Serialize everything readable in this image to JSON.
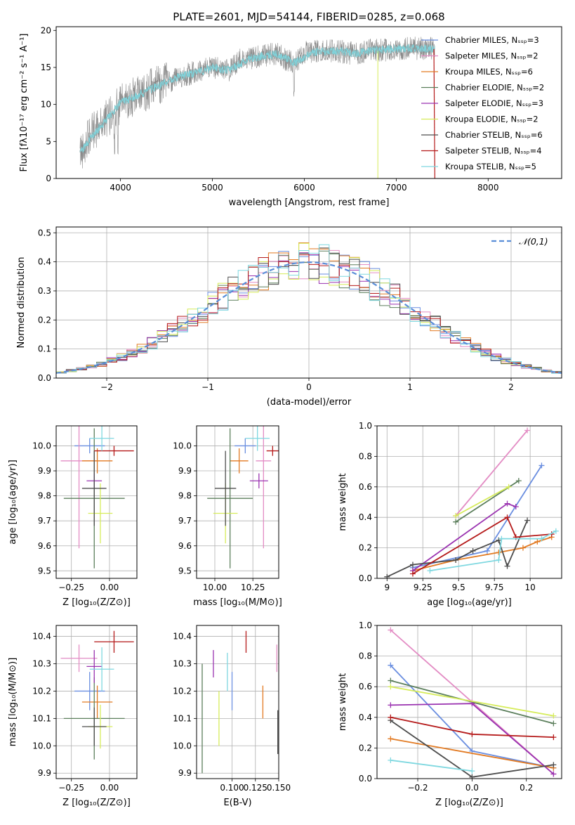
{
  "figure_title": "PLATE=2601, MJD=54144, FIBERID=0285, z=0.068",
  "colors": {
    "Chabrier MILES": "#6a8ee0",
    "Salpeter MILES": "#e38cc4",
    "Kroupa MILES": "#e27a22",
    "Chabrier ELODIE": "#5c7f5c",
    "Salpeter ELODIE": "#9a32b0",
    "Kroupa ELODIE": "#d6ec5a",
    "Chabrier STELIB": "#4d4d4d",
    "Salpeter STELIB": "#b51a1a",
    "Kroupa STELIB": "#7fd8e0"
  },
  "chart_data": [
    {
      "id": "spectrum",
      "type": "line",
      "title": "PLATE=2601, MJD=54144, FIBERID=0285, z=0.068",
      "xlabel": "wavelength [Angstrom, rest frame]",
      "ylabel": "Flux [fλ10⁻¹⁷ erg cm⁻² s⁻¹ A⁻¹]",
      "xlim": [
        3300,
        8800
      ],
      "ylim": [
        0,
        20.5
      ],
      "xticks": [
        4000,
        5000,
        6000,
        7000,
        8000
      ],
      "yticks": [
        0,
        5,
        10,
        15,
        20
      ],
      "grid": false,
      "legend_position": "upper-right",
      "legend": [
        "Chabrier MILES, Nₛₛₚ=3",
        "Salpeter MILES, Nₛₛₚ=2",
        "Kroupa MILES, Nₛₛₚ=6",
        "Chabrier ELODIE, Nₛₛₚ=2",
        "Salpeter ELODIE, Nₛₛₚ=3",
        "Kroupa ELODIE, Nₛₛₚ=2",
        "Chabrier STELIB, Nₛₛₚ=6",
        "Salpeter STELIB, Nₛₛₚ=4",
        "Kroupa STELIB, Nₛₛₚ=5"
      ],
      "data_x": [
        3560,
        3650,
        3750,
        3850,
        3950,
        4050,
        4150,
        4300,
        4500,
        4700,
        4860,
        5000,
        5175,
        5300,
        5500,
        5700,
        5890,
        6000,
        6200,
        6400,
        6563,
        6700,
        6900,
        7100,
        7300,
        7420
      ],
      "data_y": [
        3.5,
        5.5,
        7.0,
        8.0,
        9.5,
        10.5,
        11.0,
        12.0,
        13.0,
        14.0,
        14.5,
        15.0,
        14.5,
        16.0,
        16.5,
        16.8,
        15.5,
        17.0,
        17.2,
        17.2,
        16.8,
        17.4,
        17.3,
        17.5,
        17.6,
        17.5
      ],
      "model_x": [
        3560,
        3700,
        3850,
        4000,
        4200,
        4400,
        4600,
        4860,
        5000,
        5175,
        5400,
        5700,
        5890,
        6100,
        6400,
        6563,
        6800,
        7000,
        7200,
        7420
      ],
      "model_y": [
        3.6,
        5.8,
        8.0,
        10.2,
        11.3,
        12.5,
        13.6,
        14.4,
        15.0,
        14.6,
        16.2,
        16.8,
        15.6,
        17.1,
        17.2,
        16.9,
        17.4,
        17.5,
        17.6,
        17.5
      ],
      "kroupa_stelib_gap_x": [
        3900,
        3950
      ]
    },
    {
      "id": "residuals",
      "type": "histogram",
      "xlabel": "(data-model)/error",
      "ylabel": "Normed distribution",
      "xlim": [
        -2.5,
        2.5
      ],
      "ylim": [
        0,
        0.52
      ],
      "xticks": [
        -2,
        -1,
        0,
        1,
        2
      ],
      "xtick_labels": [
        "−2",
        "−1",
        "0",
        "1",
        "2"
      ],
      "yticks": [
        0.0,
        0.1,
        0.2,
        0.3,
        0.4,
        0.5
      ],
      "grid": true,
      "legend_position": "upper-right",
      "legend": [
        "𝒩(0,1)"
      ],
      "bin_width": 0.1,
      "bin_start": -2.5
    },
    {
      "id": "age_vs_Z",
      "type": "errorbar",
      "xlabel": "Z [log₁₀(Z/Z⊙)]",
      "ylabel": "age  [log₁₀(age/yr)]",
      "xlim": [
        -0.35,
        0.18
      ],
      "ylim": [
        9.47,
        10.08
      ],
      "xticks": [
        -0.25,
        0.0
      ],
      "xtick_labels": [
        "−0.25",
        "0.00"
      ],
      "yticks": [
        9.5,
        9.6,
        9.7,
        9.8,
        9.9,
        10.0
      ],
      "grid": true,
      "points": [
        {
          "series": "Chabrier MILES",
          "x": -0.13,
          "xerr": 0.1,
          "y": 10.0,
          "yerr": 0.03
        },
        {
          "series": "Salpeter MILES",
          "x": -0.2,
          "xerr": 0.12,
          "y": 9.94,
          "yerr": 0.35
        },
        {
          "series": "Kroupa MILES",
          "x": -0.08,
          "xerr": 0.1,
          "y": 9.94,
          "yerr": 0.05
        },
        {
          "series": "Chabrier ELODIE",
          "x": -0.1,
          "xerr": 0.2,
          "y": 9.79,
          "yerr": 0.28
        },
        {
          "series": "Salpeter ELODIE",
          "x": -0.1,
          "xerr": 0.05,
          "y": 9.86,
          "yerr": 0.03
        },
        {
          "series": "Kroupa ELODIE",
          "x": -0.06,
          "xerr": 0.08,
          "y": 9.73,
          "yerr": 0.12
        },
        {
          "series": "Chabrier STELIB",
          "x": -0.1,
          "xerr": 0.08,
          "y": 9.83,
          "yerr": 0.15
        },
        {
          "series": "Salpeter STELIB",
          "x": 0.03,
          "xerr": 0.13,
          "y": 9.98,
          "yerr": 0.02
        },
        {
          "series": "Kroupa STELIB",
          "x": -0.05,
          "xerr": 0.08,
          "y": 10.03,
          "yerr": 0.05
        }
      ]
    },
    {
      "id": "age_vs_mass",
      "type": "errorbar",
      "xlabel": "mass [log₁₀(M/M⊙)]",
      "xlim": [
        9.88,
        10.42
      ],
      "ylim": [
        9.47,
        10.08
      ],
      "xticks": [
        10.0,
        10.25
      ],
      "xtick_labels": [
        "10.00",
        "10.25"
      ],
      "yticks": [
        9.5,
        9.6,
        9.7,
        9.8,
        9.9,
        10.0
      ],
      "grid": true,
      "points": [
        {
          "series": "Chabrier MILES",
          "x": 10.2,
          "xerr": 0.07,
          "y": 10.0,
          "yerr": 0.03
        },
        {
          "series": "Salpeter MILES",
          "x": 10.32,
          "xerr": 0.05,
          "y": 9.94,
          "yerr": 0.35
        },
        {
          "series": "Kroupa MILES",
          "x": 10.16,
          "xerr": 0.06,
          "y": 9.94,
          "yerr": 0.05
        },
        {
          "series": "Chabrier ELODIE",
          "x": 10.1,
          "xerr": 0.15,
          "y": 9.79,
          "yerr": 0.28
        },
        {
          "series": "Salpeter ELODIE",
          "x": 10.29,
          "xerr": 0.06,
          "y": 9.86,
          "yerr": 0.03
        },
        {
          "series": "Kroupa ELODIE",
          "x": 10.07,
          "xerr": 0.08,
          "y": 9.73,
          "yerr": 0.12
        },
        {
          "series": "Chabrier STELIB",
          "x": 10.07,
          "xerr": 0.07,
          "y": 9.83,
          "yerr": 0.15
        },
        {
          "series": "Salpeter STELIB",
          "x": 10.38,
          "xerr": 0.04,
          "y": 9.98,
          "yerr": 0.02
        },
        {
          "series": "Kroupa STELIB",
          "x": 10.28,
          "xerr": 0.08,
          "y": 10.03,
          "yerr": 0.05
        }
      ]
    },
    {
      "id": "weight_vs_age",
      "type": "line",
      "xlabel": "age  [log₁₀(age/yr)]",
      "ylabel": "mass weight",
      "xlim": [
        8.93,
        10.22
      ],
      "ylim": [
        0,
        1.0
      ],
      "xticks": [
        9.0,
        9.25,
        9.5,
        9.75,
        10.0
      ],
      "yticks": [
        0.0,
        0.2,
        0.4,
        0.6,
        0.8,
        1.0
      ],
      "grid": true,
      "series": [
        {
          "name": "Chabrier MILES",
          "x": [
            9.18,
            9.7,
            10.08
          ],
          "y": [
            0.07,
            0.18,
            0.74
          ]
        },
        {
          "name": "Salpeter MILES",
          "x": [
            9.48,
            9.98
          ],
          "y": [
            0.41,
            0.97
          ]
        },
        {
          "name": "Kroupa MILES",
          "x": [
            9.18,
            9.48,
            9.78,
            9.95,
            10.05,
            10.15
          ],
          "y": [
            0.05,
            0.12,
            0.17,
            0.2,
            0.24,
            0.27
          ]
        },
        {
          "name": "Chabrier ELODIE",
          "x": [
            9.48,
            9.92
          ],
          "y": [
            0.37,
            0.64
          ]
        },
        {
          "name": "Salpeter ELODIE",
          "x": [
            9.18,
            9.84,
            9.9
          ],
          "y": [
            0.05,
            0.49,
            0.47
          ]
        },
        {
          "name": "Kroupa ELODIE",
          "x": [
            9.48,
            9.85
          ],
          "y": [
            0.41,
            0.6
          ]
        },
        {
          "name": "Chabrier STELIB",
          "x": [
            9.0,
            9.18,
            9.48,
            9.6,
            9.78,
            9.84,
            9.98
          ],
          "y": [
            0.01,
            0.09,
            0.12,
            0.18,
            0.25,
            0.08,
            0.38
          ]
        },
        {
          "name": "Salpeter STELIB",
          "x": [
            9.18,
            9.84,
            9.9,
            10.15
          ],
          "y": [
            0.03,
            0.4,
            0.27,
            0.29
          ]
        },
        {
          "name": "Kroupa STELIB",
          "x": [
            9.3,
            9.78,
            9.8,
            10.08,
            10.18
          ],
          "y": [
            0.05,
            0.12,
            0.26,
            0.26,
            0.31
          ]
        }
      ]
    },
    {
      "id": "mass_vs_Z",
      "type": "errorbar",
      "xlabel": "Z [log₁₀(Z/Z⊙)]",
      "ylabel": "mass [log₁₀(M/M⊙)]",
      "xlim": [
        -0.35,
        0.18
      ],
      "ylim": [
        9.88,
        10.44
      ],
      "xticks": [
        -0.25,
        0.0
      ],
      "xtick_labels": [
        "−0.25",
        "0.00"
      ],
      "yticks": [
        9.9,
        10.0,
        10.1,
        10.2,
        10.3,
        10.4
      ],
      "grid": true,
      "points": [
        {
          "series": "Chabrier MILES",
          "x": -0.13,
          "xerr": 0.1,
          "y": 10.2,
          "yerr": 0.07
        },
        {
          "series": "Salpeter MILES",
          "x": -0.2,
          "xerr": 0.12,
          "y": 10.32,
          "yerr": 0.05
        },
        {
          "series": "Kroupa MILES",
          "x": -0.08,
          "xerr": 0.1,
          "y": 10.16,
          "yerr": 0.06
        },
        {
          "series": "Chabrier ELODIE",
          "x": -0.1,
          "xerr": 0.2,
          "y": 10.1,
          "yerr": 0.15
        },
        {
          "series": "Salpeter ELODIE",
          "x": -0.1,
          "xerr": 0.05,
          "y": 10.29,
          "yerr": 0.06
        },
        {
          "series": "Kroupa ELODIE",
          "x": -0.06,
          "xerr": 0.08,
          "y": 10.07,
          "yerr": 0.08
        },
        {
          "series": "Chabrier STELIB",
          "x": -0.1,
          "xerr": 0.08,
          "y": 10.07,
          "yerr": 0.07
        },
        {
          "series": "Salpeter STELIB",
          "x": 0.03,
          "xerr": 0.13,
          "y": 10.38,
          "yerr": 0.04
        },
        {
          "series": "Kroupa STELIB",
          "x": -0.05,
          "xerr": 0.08,
          "y": 10.28,
          "yerr": 0.08
        }
      ]
    },
    {
      "id": "mass_vs_ebv",
      "type": "errorbar",
      "xlabel": "E(B-V)",
      "xlim": [
        0.062,
        0.15
      ],
      "ylim": [
        9.88,
        10.44
      ],
      "xticks": [
        0.1,
        0.125,
        0.15
      ],
      "xtick_labels": [
        "0.100",
        "0.125",
        "0.150"
      ],
      "yticks": [
        9.9,
        10.0,
        10.1,
        10.2,
        10.3,
        10.4
      ],
      "grid": true,
      "points": [
        {
          "series": "Chabrier MILES",
          "x": 0.1,
          "xerr": 0,
          "y": 10.2,
          "yerr": 0.07
        },
        {
          "series": "Salpeter MILES",
          "x": 0.148,
          "xerr": 0,
          "y": 10.32,
          "yerr": 0.05
        },
        {
          "series": "Kroupa MILES",
          "x": 0.133,
          "xerr": 0,
          "y": 10.16,
          "yerr": 0.06
        },
        {
          "series": "Chabrier ELODIE",
          "x": 0.068,
          "xerr": 0,
          "y": 10.1,
          "yerr": 0.2
        },
        {
          "series": "Salpeter ELODIE",
          "x": 0.08,
          "xerr": 0,
          "y": 10.3,
          "yerr": 0.05
        },
        {
          "series": "Kroupa ELODIE",
          "x": 0.086,
          "xerr": 0,
          "y": 10.1,
          "yerr": 0.1
        },
        {
          "series": "Chabrier STELIB",
          "x": 0.149,
          "xerr": 0,
          "y": 10.05,
          "yerr": 0.08
        },
        {
          "series": "Salpeter STELIB",
          "x": 0.115,
          "xerr": 0,
          "y": 10.38,
          "yerr": 0.04
        },
        {
          "series": "Kroupa STELIB",
          "x": 0.095,
          "xerr": 0,
          "y": 10.27,
          "yerr": 0.07
        }
      ]
    },
    {
      "id": "weight_vs_Z",
      "type": "line",
      "xlabel": "Z [log₁₀(Z/Z⊙)]",
      "ylabel": "mass weight",
      "xlim": [
        -0.35,
        0.33
      ],
      "ylim": [
        0,
        1.0
      ],
      "xticks": [
        -0.2,
        0.0,
        0.2
      ],
      "xtick_labels": [
        "−0.2",
        "0.0",
        "0.2"
      ],
      "yticks": [
        0.0,
        0.2,
        0.4,
        0.6,
        0.8,
        1.0
      ],
      "grid": true,
      "series": [
        {
          "name": "Chabrier MILES",
          "x": [
            -0.3,
            0.0,
            0.3
          ],
          "y": [
            0.74,
            0.18,
            0.07
          ]
        },
        {
          "name": "Salpeter MILES",
          "x": [
            -0.3,
            0.0,
            0.3
          ],
          "y": [
            0.97,
            0.5,
            0.03
          ]
        },
        {
          "name": "Kroupa MILES",
          "x": [
            -0.3,
            0.3
          ],
          "y": [
            0.26,
            0.07
          ]
        },
        {
          "name": "Chabrier ELODIE",
          "x": [
            -0.3,
            0.3
          ],
          "y": [
            0.64,
            0.36
          ]
        },
        {
          "name": "Salpeter ELODIE",
          "x": [
            -0.3,
            0.0,
            0.3
          ],
          "y": [
            0.48,
            0.49,
            0.03
          ]
        },
        {
          "name": "Kroupa ELODIE",
          "x": [
            -0.3,
            0.3
          ],
          "y": [
            0.6,
            0.41
          ]
        },
        {
          "name": "Chabrier STELIB",
          "x": [
            -0.3,
            0.0,
            0.3
          ],
          "y": [
            0.38,
            0.01,
            0.09
          ]
        },
        {
          "name": "Salpeter STELIB",
          "x": [
            -0.3,
            0.0,
            0.3
          ],
          "y": [
            0.4,
            0.29,
            0.27
          ]
        },
        {
          "name": "Kroupa STELIB",
          "x": [
            -0.3,
            0.0
          ],
          "y": [
            0.12,
            0.05
          ]
        }
      ]
    }
  ]
}
